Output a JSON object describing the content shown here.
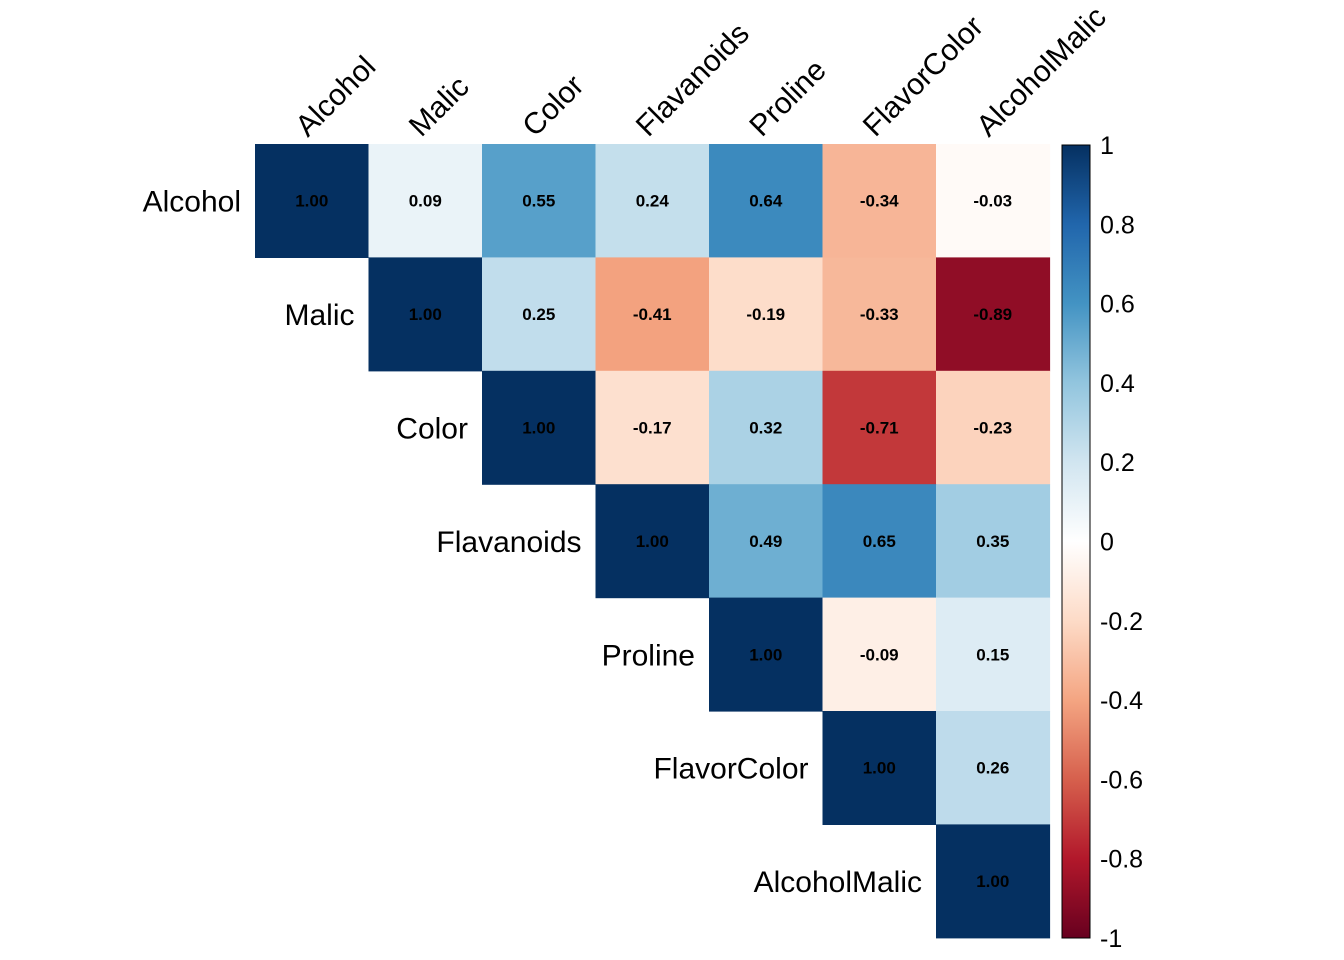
{
  "chart_data": {
    "type": "heatmap",
    "variables": [
      "Alcohol",
      "Malic",
      "Color",
      "Flavanoids",
      "Proline",
      "FlavorColor",
      "AlcoholMalic"
    ],
    "matrix": [
      [
        1.0,
        0.09,
        0.55,
        0.24,
        0.64,
        -0.34,
        -0.03
      ],
      [
        0.09,
        1.0,
        0.25,
        -0.41,
        -0.19,
        -0.33,
        -0.89
      ],
      [
        0.55,
        0.25,
        1.0,
        -0.17,
        0.32,
        -0.71,
        -0.23
      ],
      [
        0.24,
        -0.41,
        -0.17,
        1.0,
        0.49,
        0.65,
        0.35
      ],
      [
        0.64,
        -0.19,
        0.32,
        0.49,
        1.0,
        -0.09,
        0.15
      ],
      [
        -0.34,
        -0.33,
        -0.71,
        0.65,
        -0.09,
        1.0,
        0.26
      ],
      [
        -0.03,
        -0.89,
        -0.23,
        0.35,
        0.15,
        0.26,
        1.0
      ]
    ],
    "display": "upper triangle",
    "value_format": "2 decimals",
    "colorbar": {
      "range": [
        -1,
        1
      ],
      "ticks": [
        1,
        0.8,
        0.6,
        0.4,
        0.2,
        0,
        -0.2,
        -0.4,
        -0.6,
        -0.8,
        -1
      ],
      "tick_labels": [
        "1",
        "0.8",
        "0.6",
        "0.4",
        "0.2",
        "0",
        "-0.2",
        "-0.4",
        "-0.6",
        "-0.8",
        "-1"
      ],
      "palette": [
        "#67001F",
        "#B2182B",
        "#D6604D",
        "#F4A582",
        "#FDDBC7",
        "#FFFFFF",
        "#D1E5F0",
        "#92C5DE",
        "#4393C3",
        "#2166AC",
        "#053061"
      ]
    }
  }
}
